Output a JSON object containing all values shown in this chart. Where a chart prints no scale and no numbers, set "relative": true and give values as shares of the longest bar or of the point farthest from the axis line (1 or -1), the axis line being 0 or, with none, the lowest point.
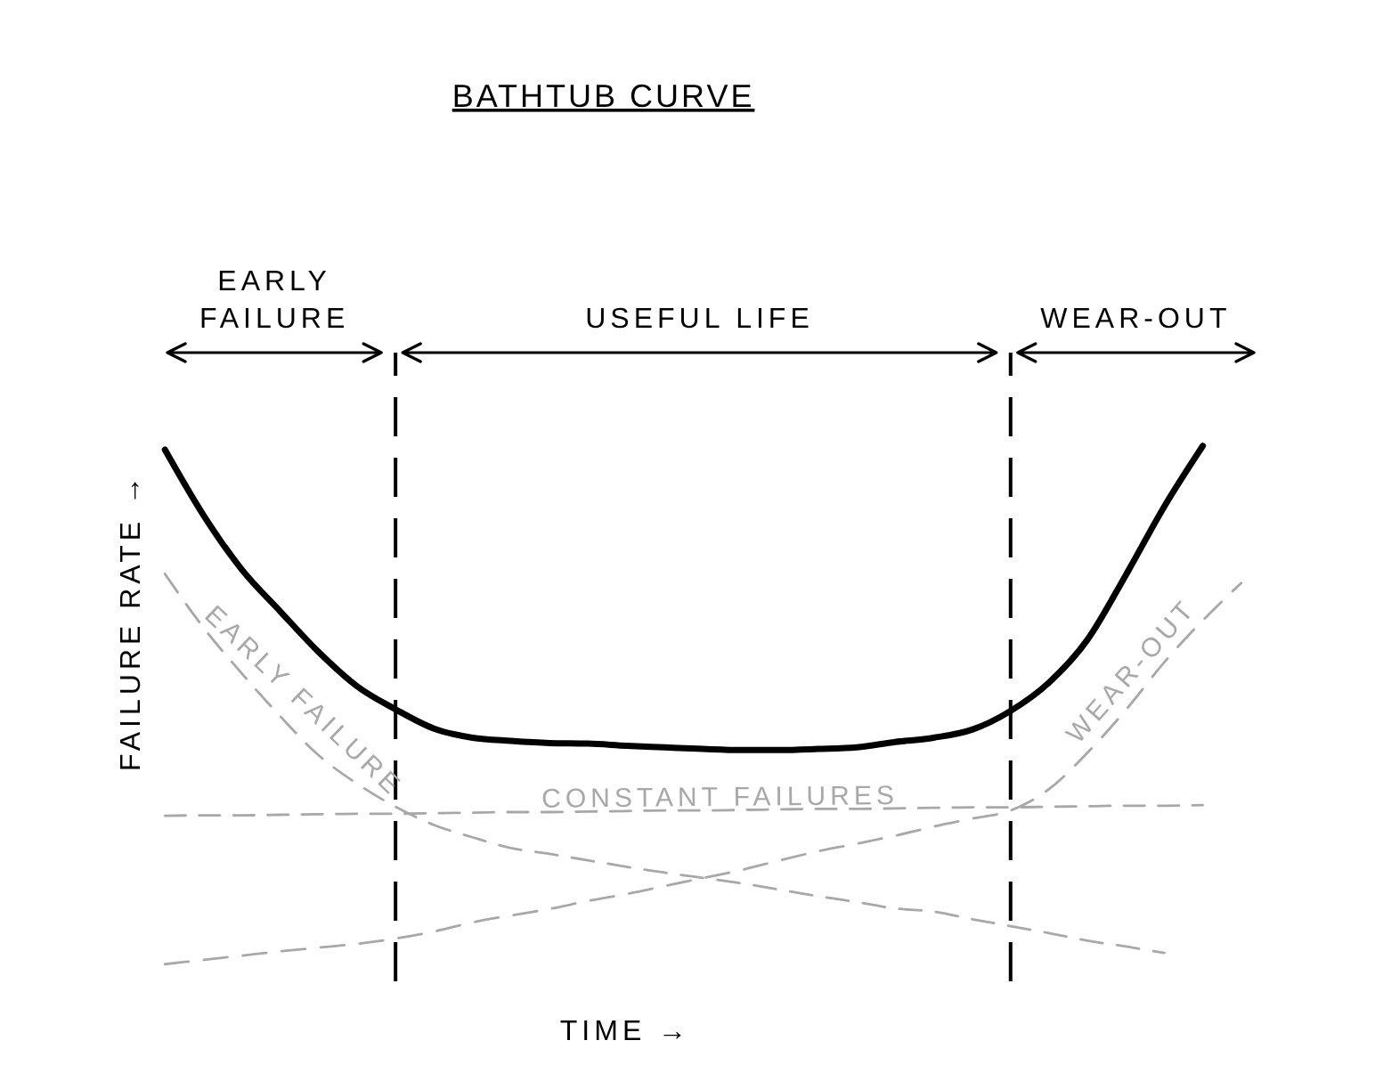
{
  "chart_data": {
    "type": "line",
    "title": "BATHTUB CURVE",
    "xlabel": "TIME →",
    "ylabel": "FAILURE RATE →",
    "relative": true,
    "tick_labels": false,
    "categories": [
      null,
      null,
      null,
      null,
      null,
      null,
      null,
      null,
      null,
      null,
      null,
      null,
      null,
      null,
      null,
      null,
      null,
      null,
      null,
      null,
      null,
      null,
      null,
      null,
      null,
      null,
      null,
      null,
      null
    ],
    "series": [
      {
        "color": "#000000",
        "line_style": "solid",
        "values": [
          0.993,
          0.871,
          0.769,
          0.691,
          0.615,
          0.551,
          0.508,
          0.472,
          0.455,
          0.449,
          0.445,
          0.444,
          0.44,
          0.437,
          0.434,
          0.432,
          0.432,
          0.434,
          0.437,
          0.447,
          0.455,
          0.47,
          0.505,
          0.558,
          0.638,
          0.759,
          0.887,
          1.0,
          null
        ]
      },
      {
        "name": "EARLY FAILURE",
        "color": "#a8a8a8",
        "line_style": "dashed",
        "values": [
          0.761,
          0.661,
          0.575,
          0.495,
          0.422,
          0.369,
          0.326,
          0.292,
          0.269,
          0.249,
          0.238,
          0.226,
          0.214,
          0.203,
          0.193,
          0.183,
          0.171,
          0.159,
          0.148,
          0.136,
          0.13,
          0.116,
          0.103,
          0.09,
          0.076,
          0.065,
          0.053,
          null,
          null
        ]
      },
      {
        "name": "CONSTANT FAILURES",
        "color": "#a8a8a8",
        "line_style": "dashed",
        "values": [
          0.309,
          0.31,
          0.31,
          0.311,
          0.312,
          0.313,
          0.313,
          0.314,
          0.315,
          0.316,
          0.316,
          0.317,
          0.318,
          0.319,
          0.319,
          0.32,
          0.321,
          0.322,
          0.322,
          0.323,
          0.324,
          0.325,
          0.325,
          0.326,
          0.327,
          0.328,
          0.328,
          0.329,
          null
        ]
      },
      {
        "name": "WEAR-OUT",
        "color": "#a8a8a8",
        "line_style": "dashed",
        "values": [
          0.032,
          0.04,
          0.048,
          0.056,
          0.063,
          0.07,
          0.08,
          0.093,
          0.11,
          0.123,
          0.135,
          0.15,
          0.163,
          0.178,
          0.193,
          0.208,
          0.226,
          0.243,
          0.257,
          0.272,
          0.289,
          0.304,
          0.319,
          0.359,
          0.427,
          0.507,
          0.596,
          0.674,
          0.744
        ]
      }
    ],
    "annotations": [
      "EARLY FAILURE",
      "USEFUL LIFE",
      "WEAR-OUT"
    ]
  }
}
